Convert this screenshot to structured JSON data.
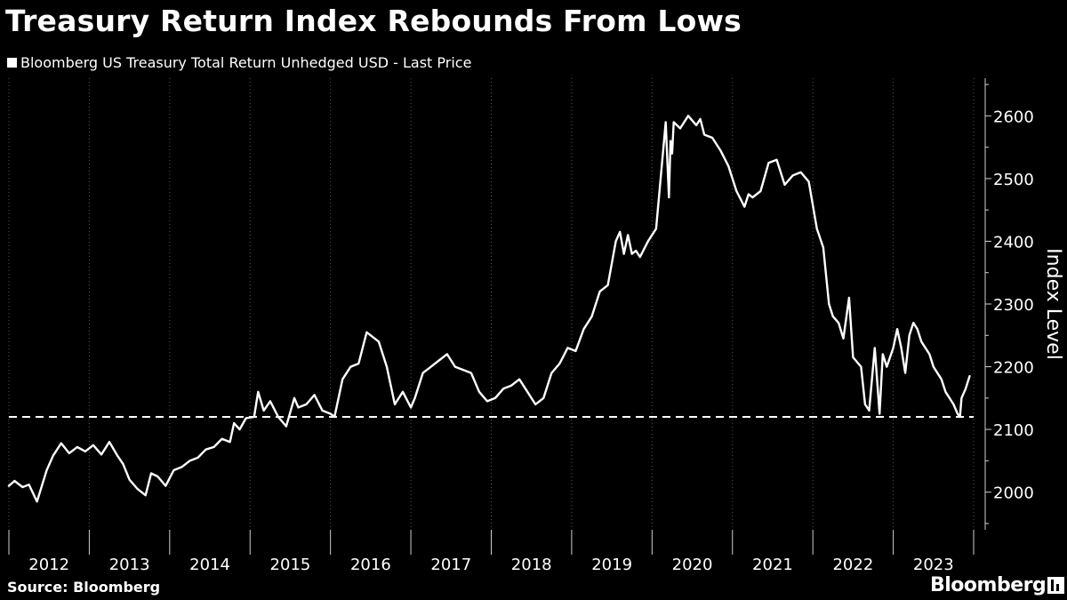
{
  "title": "Treasury Return Index Rebounds From Lows",
  "source": "Source: Bloomberg",
  "brand": "Bloomberg",
  "colors": {
    "background": "#000000",
    "line": "#ffffff",
    "grid": "#555555"
  },
  "chart_data": {
    "type": "line",
    "legend": "Bloomberg US Treasury Total Return Unhedged USD - Last Price",
    "ylabel": "Index Level",
    "y_axis_side": "right",
    "ylim": [
      1940,
      2660
    ],
    "yticks": [
      2000,
      2100,
      2200,
      2300,
      2400,
      2500,
      2600
    ],
    "xlim": [
      2011.95,
      2023.95
    ],
    "xticks": [
      "2012",
      "2013",
      "2014",
      "2015",
      "2016",
      "2017",
      "2018",
      "2019",
      "2020",
      "2021",
      "2022",
      "2023"
    ],
    "grid": "vertical dotted",
    "reference_line": {
      "value": 2120,
      "style": "dashed"
    },
    "series": [
      {
        "x": [
          2011.95,
          2012.02,
          2012.12,
          2012.2,
          2012.3,
          2012.42,
          2012.5,
          2012.6,
          2012.7,
          2012.8,
          2012.9,
          2013.0,
          2013.1,
          2013.2,
          2013.3,
          2013.37,
          2013.45,
          2013.55,
          2013.65,
          2013.72,
          2013.8,
          2013.9,
          2014.0,
          2014.1,
          2014.2,
          2014.3,
          2014.4,
          2014.5,
          2014.6,
          2014.7,
          2014.75,
          2014.82,
          2014.9,
          2015.0,
          2015.05,
          2015.12,
          2015.2,
          2015.3,
          2015.4,
          2015.5,
          2015.55,
          2015.65,
          2015.75,
          2015.85,
          2015.95,
          2016.0,
          2016.1,
          2016.2,
          2016.3,
          2016.4,
          2016.5,
          2016.55,
          2016.65,
          2016.75,
          2016.85,
          2016.95,
          2017.0,
          2017.1,
          2017.2,
          2017.3,
          2017.4,
          2017.5,
          2017.6,
          2017.7,
          2017.8,
          2017.9,
          2018.0,
          2018.1,
          2018.2,
          2018.3,
          2018.4,
          2018.5,
          2018.6,
          2018.7,
          2018.8,
          2018.9,
          2019.0,
          2019.1,
          2019.2,
          2019.3,
          2019.4,
          2019.5,
          2019.55,
          2019.6,
          2019.65,
          2019.7,
          2019.75,
          2019.8,
          2019.9,
          2020.0,
          2020.12,
          2020.16,
          2020.18,
          2020.2,
          2020.22,
          2020.3,
          2020.4,
          2020.5,
          2020.55,
          2020.6,
          2020.7,
          2020.8,
          2020.9,
          2021.0,
          2021.1,
          2021.15,
          2021.2,
          2021.3,
          2021.4,
          2021.5,
          2021.55,
          2021.6,
          2021.7,
          2021.8,
          2021.9,
          2022.0,
          2022.08,
          2022.15,
          2022.2,
          2022.27,
          2022.33,
          2022.4,
          2022.45,
          2022.55,
          2022.6,
          2022.65,
          2022.72,
          2022.78,
          2022.82,
          2022.87,
          2022.95,
          2023.0,
          2023.05,
          2023.1,
          2023.15,
          2023.2,
          2023.25,
          2023.3,
          2023.4,
          2023.45,
          2023.55,
          2023.6,
          2023.7,
          2023.75,
          2023.78,
          2023.8,
          2023.85,
          2023.9
        ],
        "values": [
          2010,
          2018,
          2008,
          2012,
          1985,
          2035,
          2058,
          2078,
          2062,
          2072,
          2065,
          2075,
          2060,
          2080,
          2058,
          2045,
          2020,
          2005,
          1995,
          2030,
          2025,
          2010,
          2035,
          2040,
          2050,
          2055,
          2068,
          2072,
          2085,
          2080,
          2110,
          2100,
          2118,
          2120,
          2160,
          2130,
          2145,
          2120,
          2105,
          2150,
          2135,
          2140,
          2155,
          2130,
          2125,
          2120,
          2180,
          2200,
          2205,
          2255,
          2245,
          2240,
          2200,
          2140,
          2160,
          2135,
          2150,
          2190,
          2200,
          2210,
          2220,
          2200,
          2195,
          2190,
          2160,
          2145,
          2150,
          2165,
          2170,
          2180,
          2160,
          2140,
          2150,
          2190,
          2205,
          2230,
          2225,
          2260,
          2280,
          2320,
          2330,
          2400,
          2415,
          2380,
          2410,
          2380,
          2385,
          2375,
          2400,
          2420,
          2590,
          2470,
          2560,
          2540,
          2590,
          2580,
          2600,
          2585,
          2595,
          2570,
          2565,
          2545,
          2520,
          2480,
          2455,
          2475,
          2470,
          2480,
          2525,
          2530,
          2510,
          2490,
          2505,
          2510,
          2495,
          2420,
          2390,
          2300,
          2280,
          2270,
          2245,
          2310,
          2215,
          2200,
          2140,
          2130,
          2230,
          2125,
          2220,
          2200,
          2230,
          2260,
          2230,
          2190,
          2250,
          2270,
          2260,
          2240,
          2220,
          2200,
          2180,
          2160,
          2140,
          2125,
          2120,
          2150,
          2165,
          2185
        ]
      }
    ]
  }
}
